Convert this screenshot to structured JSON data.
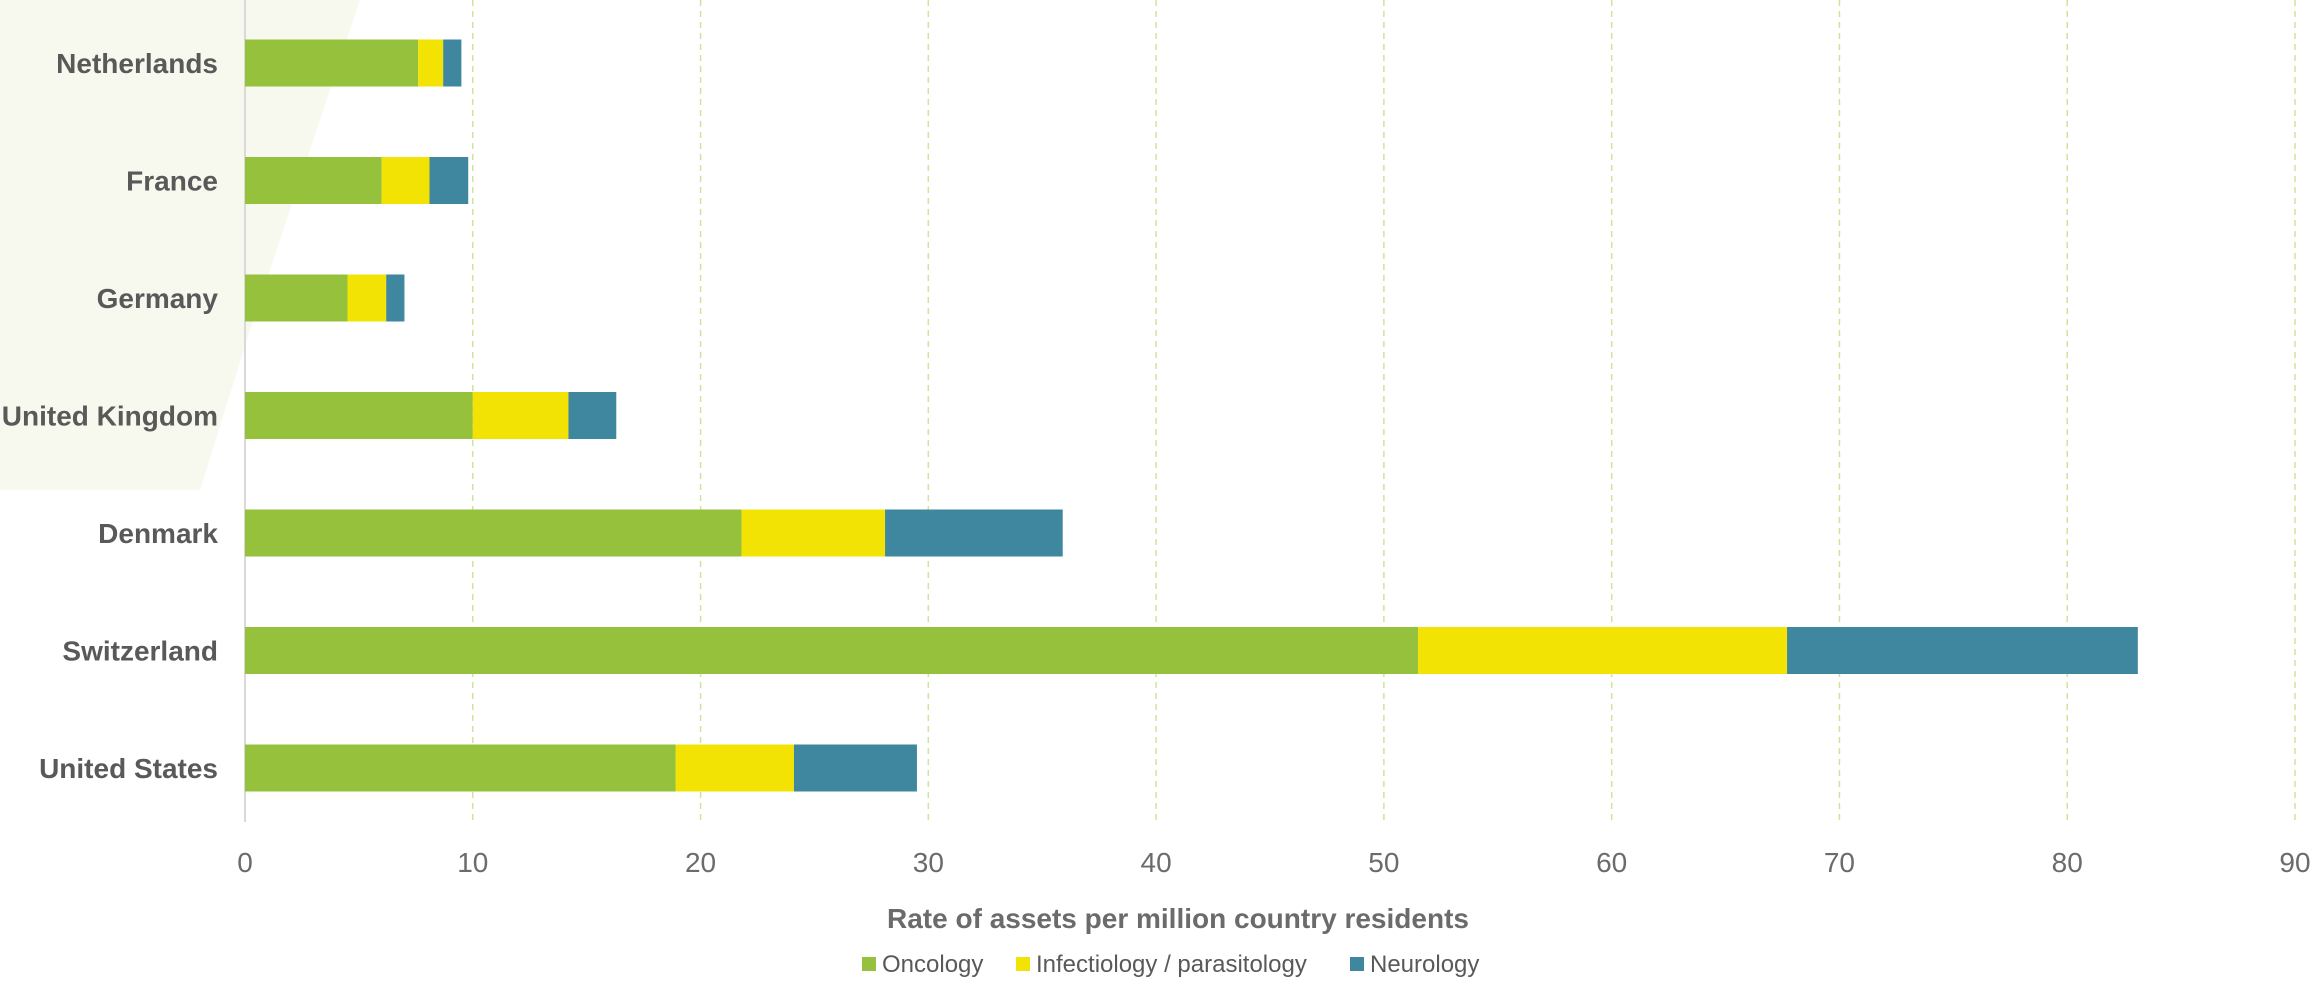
{
  "chart_data": {
    "type": "bar",
    "orientation": "horizontal",
    "stacked": true,
    "categories": [
      "Netherlands",
      "France",
      "Germany",
      "United Kingdom",
      "Denmark",
      "Switzerland",
      "United States"
    ],
    "series": [
      {
        "name": "Oncology",
        "color": "#95c13d",
        "values": [
          7.6,
          6.0,
          4.5,
          10.0,
          21.8,
          51.5,
          18.9
        ]
      },
      {
        "name": "Infectiology / parasitology",
        "color": "#f2e304",
        "values": [
          1.1,
          2.1,
          1.7,
          4.2,
          6.3,
          16.2,
          5.2
        ]
      },
      {
        "name": "Neurology",
        "color": "#3e879e",
        "values": [
          0.8,
          1.7,
          0.8,
          2.1,
          7.8,
          15.4,
          5.4
        ]
      }
    ],
    "xlabel": "Rate of assets per million country residents",
    "xlim": [
      0,
      90
    ],
    "xticks": [
      0,
      10,
      20,
      30,
      40,
      50,
      60,
      70,
      80,
      90
    ],
    "grid": "vertical dashed",
    "legend_position": "bottom"
  }
}
